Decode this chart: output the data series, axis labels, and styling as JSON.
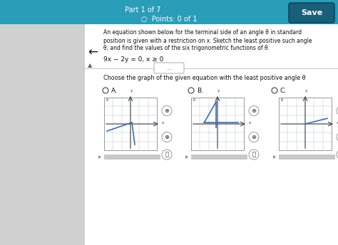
{
  "bg_color": "#e8e8e8",
  "top_bar_color": "#2a9db8",
  "header_text": "Part 1 of 7",
  "points_text": "Points: 0 of 1",
  "save_text": "Save",
  "question_line1": "An equation shown below for the terminal side of an angle θ in standard",
  "question_line2": "position is given with a restriction on x. Sketch the least positive such angle",
  "question_line3": "θ, and find the values of the six trigonometric functions of θ.",
  "equation_text": "9x − 2y = 0, x ≥ 0",
  "choose_text": "Choose the graph of the given equation with the least positive angle θ",
  "options": [
    "A.",
    "B.",
    "C."
  ],
  "white_panel_color": "#ffffff",
  "left_panel_color": "#d0d0d0",
  "grid_color": "#b0b8c8",
  "axis_color": "#444444",
  "line_color": "#3a6bbf",
  "text_color": "#111111",
  "radio_color": "#555555",
  "divider_color": "#cccccc",
  "save_btn_color": "#1a5f7a",
  "back_arrow": "←"
}
